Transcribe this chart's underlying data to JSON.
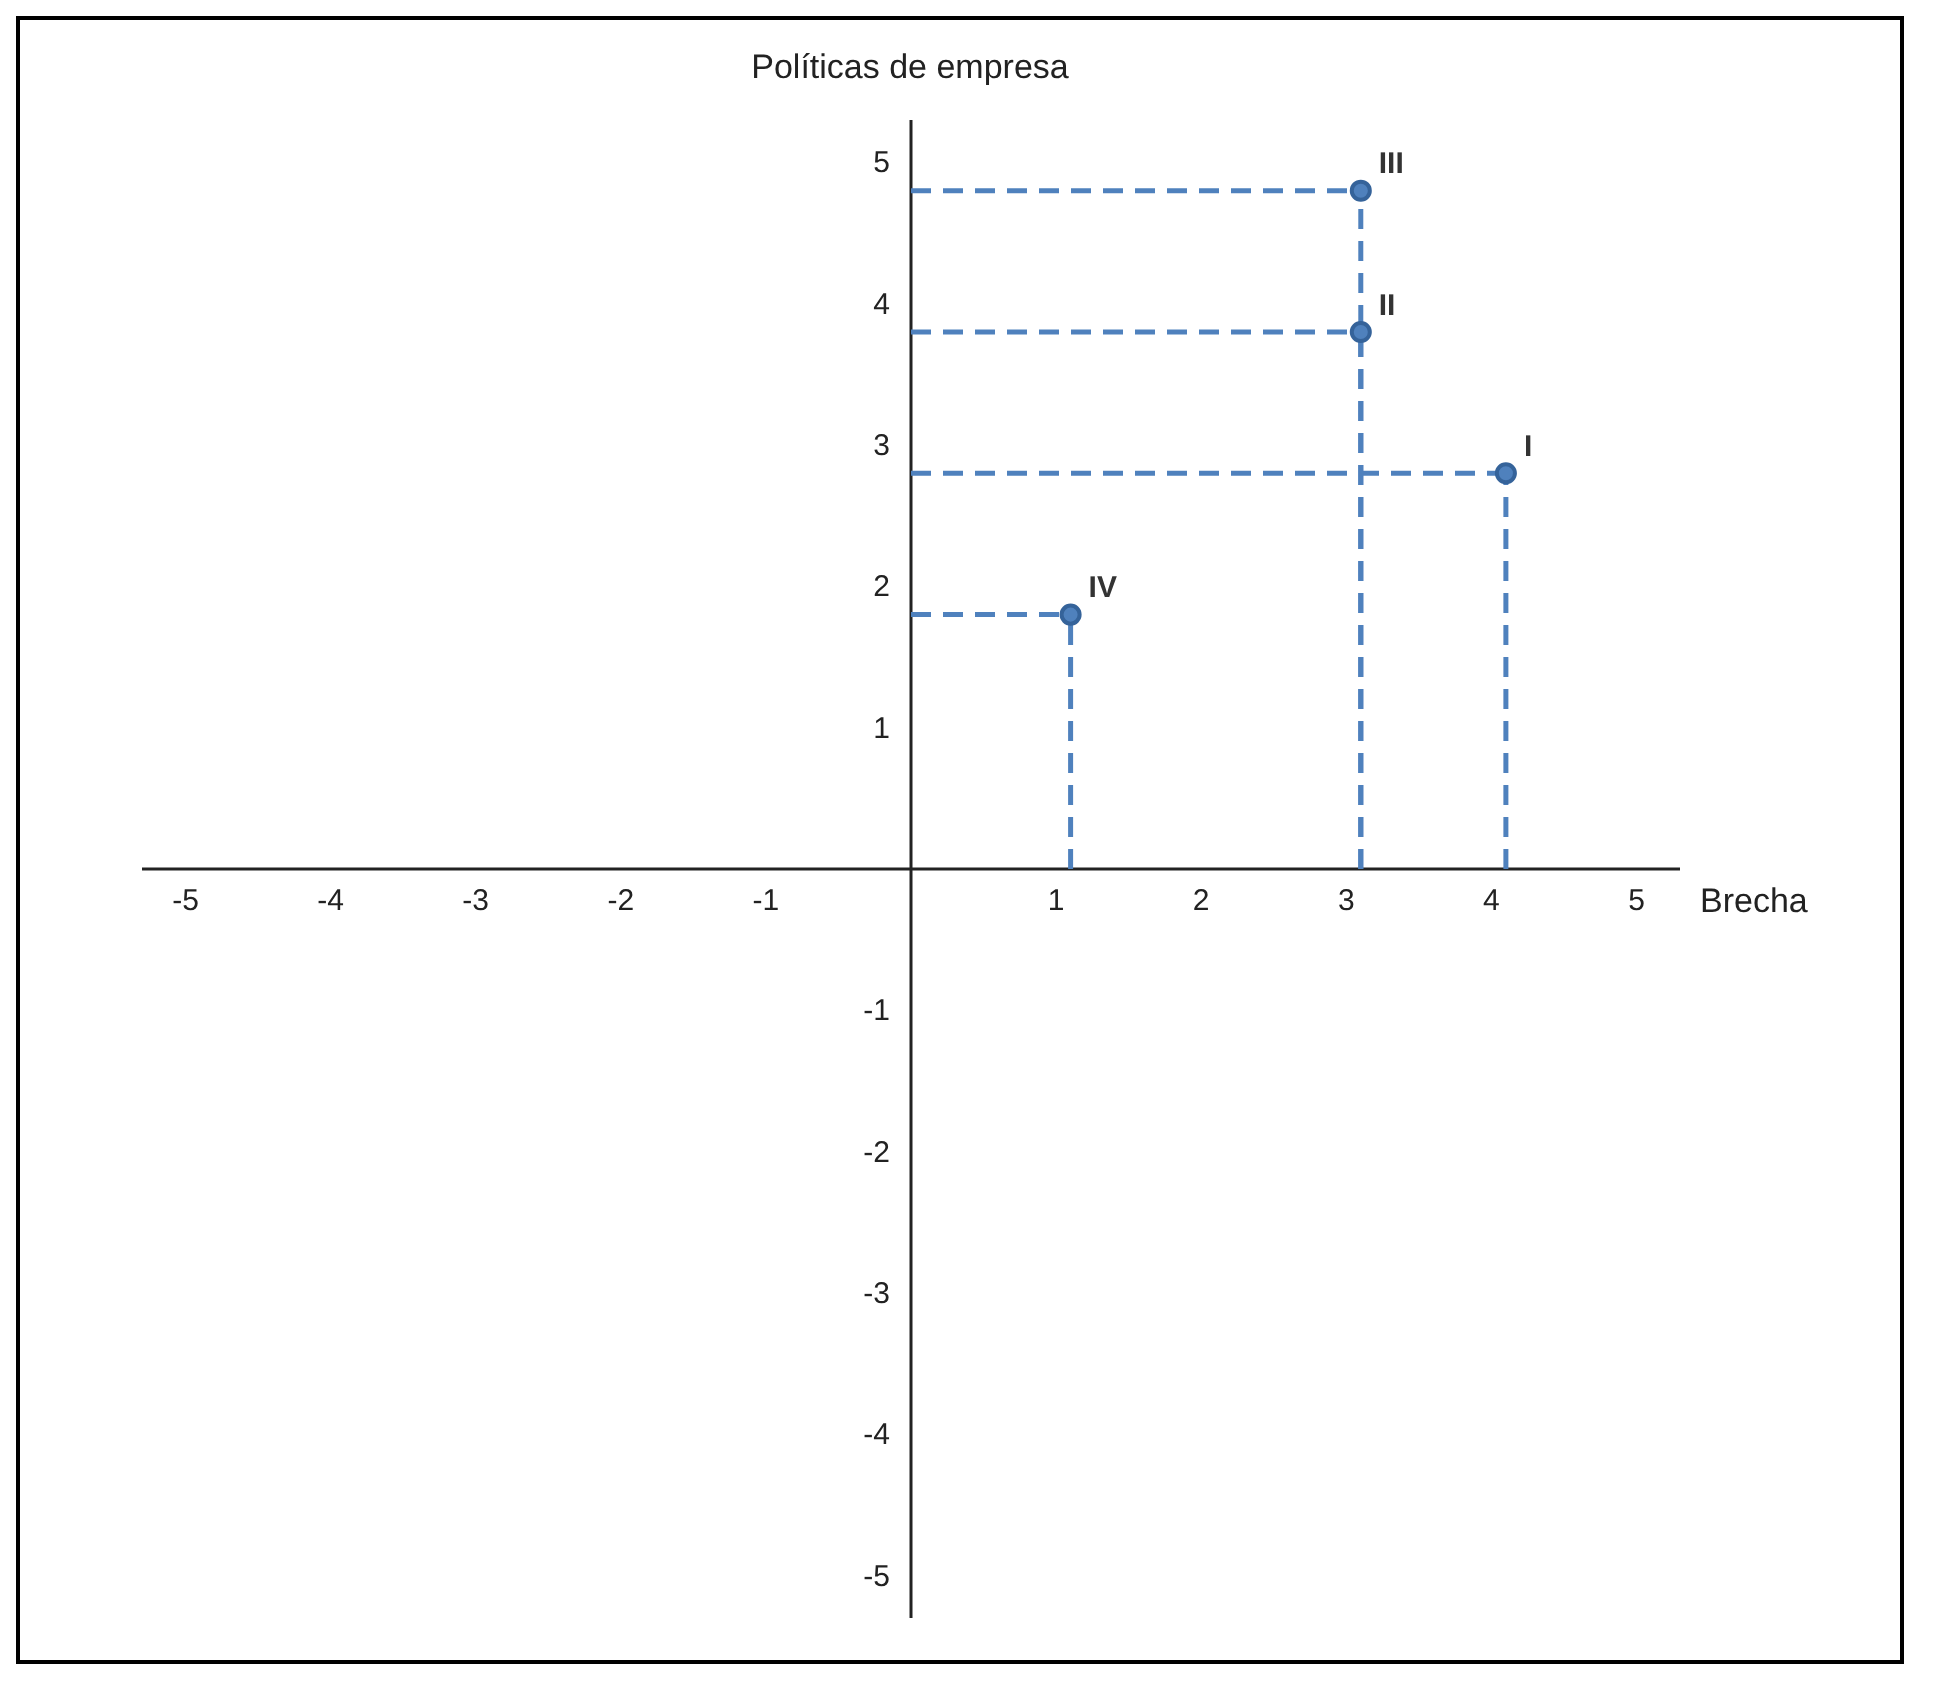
{
  "chart_data": {
    "type": "scatter",
    "xlabel": "Brecha",
    "ylabel": "Políticas de empresa",
    "x": [
      4.1,
      3.1,
      3.1,
      1.1
    ],
    "values": [
      2.8,
      3.8,
      4.8,
      1.8
    ],
    "color": "#4f81bd",
    "marker": "circle",
    "line_style": "dashed",
    "grid": false,
    "xlim": [
      -5.3,
      5.3
    ],
    "ylim": [
      -5.3,
      5.3
    ],
    "xticks": [
      -5,
      -4,
      -3,
      -2,
      -1,
      1,
      2,
      3,
      4,
      5
    ],
    "yticks": [
      -5,
      -4,
      -3,
      -2,
      -1,
      1,
      2,
      3,
      4,
      5
    ],
    "annotations": [
      {
        "text": "I",
        "x": 4.1,
        "y": 2.8
      },
      {
        "text": "II",
        "x": 3.1,
        "y": 3.8
      },
      {
        "text": "III",
        "x": 3.1,
        "y": 4.8
      },
      {
        "text": "IV",
        "x": 1.1,
        "y": 1.8
      }
    ]
  }
}
